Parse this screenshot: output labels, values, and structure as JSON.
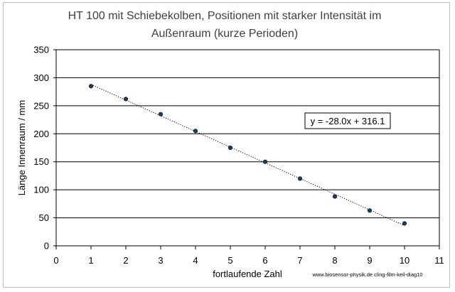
{
  "chart_data": {
    "type": "scatter",
    "title_lines": [
      "HT 100 mit Schiebekolben, Positionen mit starker Intensität im",
      "Außenraum (kurze Perioden)"
    ],
    "xlabel": "fortlaufende Zahl",
    "ylabel": "Länge Innenraum / mm",
    "xlim": [
      0,
      11
    ],
    "ylim": [
      0,
      350
    ],
    "xticks": [
      0,
      1,
      2,
      3,
      4,
      5,
      6,
      7,
      8,
      9,
      10,
      11
    ],
    "yticks": [
      0,
      50,
      100,
      150,
      200,
      250,
      300,
      350
    ],
    "grid": "horizontal",
    "x": [
      1,
      2,
      3,
      4,
      5,
      6,
      7,
      8,
      9,
      10
    ],
    "y": [
      285,
      262,
      235,
      205,
      175,
      150,
      120,
      88,
      63,
      40
    ],
    "trendline": {
      "type": "linear",
      "slope": -28.0,
      "intercept": 316.1,
      "style": "dotted",
      "equation_label": "y = -28.0x + 316.1"
    },
    "credit": "www.biosensor-physik.de cling-film-keil-diag10",
    "colors": {
      "marker": "#1f3b5c",
      "grid": "#000000",
      "text": "#000000",
      "title": "#404040"
    }
  }
}
